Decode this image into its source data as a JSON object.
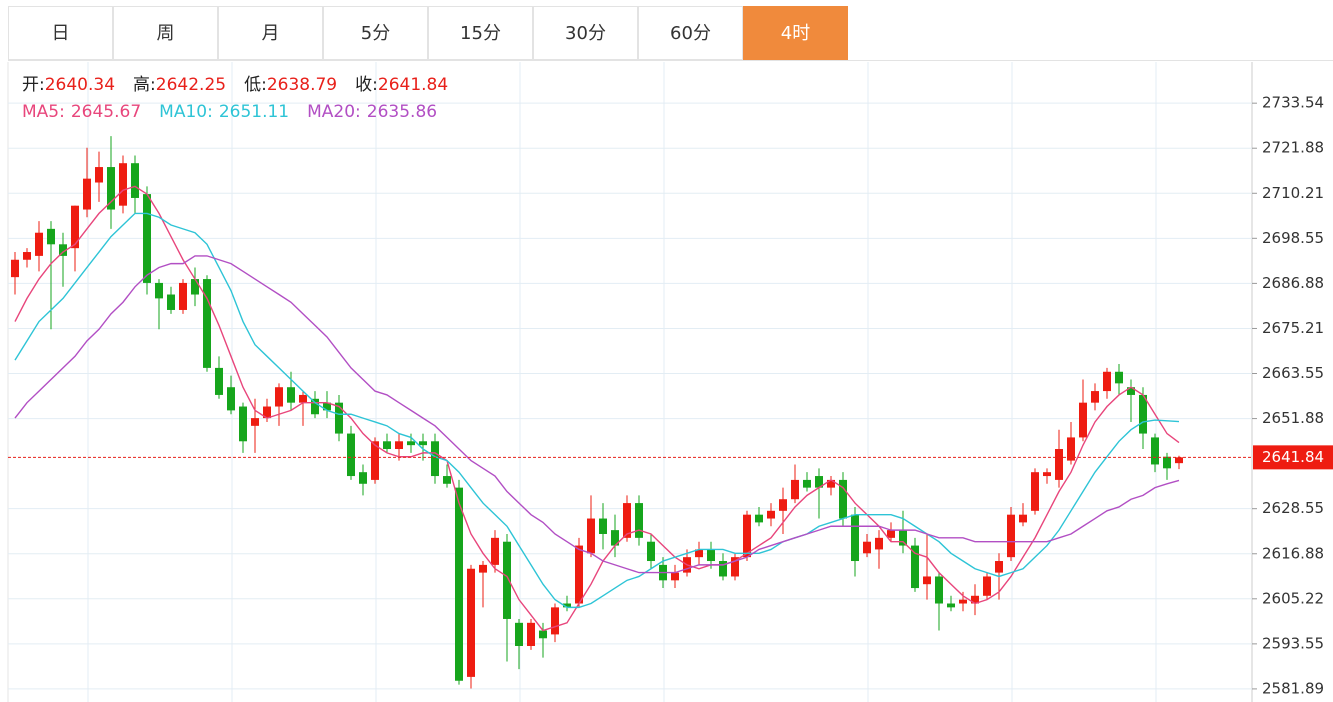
{
  "tabs": [
    "日",
    "周",
    "月",
    "5分",
    "15分",
    "30分",
    "60分",
    "4时"
  ],
  "active_tab": 7,
  "chart_data": {
    "type": "candlestick",
    "summary": [
      {
        "label": "开:",
        "value": 2640.34
      },
      {
        "label": "高:",
        "value": 2642.25
      },
      {
        "label": "低:",
        "value": 2638.79
      },
      {
        "label": "收:",
        "value": 2641.84
      }
    ],
    "up_color": "#ee1c11",
    "down_color": "#16a51c",
    "open": [
      2688.5,
      2693,
      2694,
      2701,
      2697,
      2696,
      2706,
      2713,
      2717,
      2707,
      2718,
      2710,
      2687,
      2684,
      2680,
      2688,
      2688,
      2665,
      2660,
      2655,
      2650,
      2652,
      2655,
      2660,
      2656,
      2657,
      2656,
      2656,
      2648,
      2638,
      2636,
      2646,
      2644,
      2646,
      2646,
      2646,
      2637,
      2634,
      2585,
      2612,
      2614,
      2620,
      2599,
      2593,
      2597,
      2596,
      2604,
      2604,
      2617,
      2626,
      2623,
      2621,
      2630,
      2620,
      2614,
      2610,
      2612,
      2616,
      2618,
      2615,
      2611,
      2616,
      2627,
      2626,
      2628,
      2631,
      2636,
      2637,
      2634,
      2636,
      2627,
      2617,
      2618,
      2621,
      2623,
      2619,
      2609,
      2611,
      2604,
      2604,
      2604,
      2606,
      2612,
      2616,
      2625,
      2628,
      2637,
      2636,
      2641,
      2647,
      2656,
      2659,
      2664,
      2660,
      2658,
      2647,
      2642,
      2640.34
    ],
    "high": [
      2695,
      2696,
      2703,
      2703,
      2700,
      2707,
      2722,
      2721,
      2725,
      2720,
      2720,
      2712,
      2688,
      2686,
      2688,
      2691,
      2689,
      2668,
      2663,
      2656,
      2657,
      2657,
      2661,
      2664,
      2659,
      2659,
      2659,
      2658,
      2650,
      2640,
      2647,
      2648,
      2648,
      2648,
      2648,
      2648,
      2640,
      2636,
      2614,
      2615,
      2623,
      2622,
      2600,
      2600,
      2599,
      2604,
      2606,
      2621,
      2632,
      2630,
      2627,
      2632,
      2632,
      2622,
      2616,
      2614,
      2618,
      2620,
      2620,
      2617,
      2617,
      2628,
      2629,
      2630,
      2634,
      2640,
      2638,
      2639,
      2637,
      2638,
      2629,
      2622,
      2623,
      2625,
      2628,
      2621,
      2622,
      2612,
      2606,
      2607,
      2609,
      2612,
      2617,
      2629,
      2630,
      2639,
      2639,
      2649,
      2651,
      2662,
      2661,
      2665,
      2666,
      2662,
      2660,
      2648,
      2643,
      2642.25
    ],
    "low": [
      2684,
      2691,
      2690,
      2675,
      2686,
      2690,
      2704,
      2708,
      2701,
      2705,
      2705,
      2684,
      2675,
      2679,
      2679,
      2681,
      2664,
      2657,
      2653,
      2643,
      2643,
      2651,
      2650,
      2654,
      2650,
      2652,
      2652,
      2646,
      2636,
      2632,
      2635,
      2643,
      2641,
      2643,
      2641,
      2635,
      2634,
      2583,
      2582,
      2603,
      2612,
      2589,
      2587,
      2592,
      2590,
      2594,
      2602,
      2603,
      2616,
      2618,
      2616,
      2620,
      2619,
      2613,
      2608,
      2608,
      2611,
      2614,
      2613,
      2610,
      2610,
      2615,
      2624,
      2624,
      2622,
      2630,
      2633,
      2626,
      2632,
      2624,
      2611,
      2616,
      2613,
      2620,
      2617,
      2607,
      2605,
      2597,
      2602,
      2602,
      2601,
      2605,
      2605,
      2615,
      2624,
      2627,
      2635,
      2634,
      2640,
      2646,
      2654,
      2657,
      2658,
      2651,
      2644,
      2638,
      2636,
      2638.79
    ],
    "close": [
      2693,
      2695,
      2700,
      2697,
      2694,
      2707,
      2714,
      2717,
      2706,
      2718,
      2709,
      2687,
      2683,
      2680,
      2687,
      2684,
      2665,
      2658,
      2654,
      2646,
      2652,
      2655,
      2660,
      2656,
      2658,
      2653,
      2654,
      2648,
      2637,
      2635,
      2646,
      2644,
      2646,
      2645,
      2645,
      2637,
      2635,
      2584,
      2613,
      2614,
      2621,
      2600,
      2593,
      2599,
      2595,
      2603,
      2603,
      2619,
      2626,
      2622,
      2619,
      2630,
      2621,
      2615,
      2610,
      2612,
      2616,
      2618,
      2615,
      2611,
      2616,
      2627,
      2625,
      2628,
      2631,
      2636,
      2634,
      2634,
      2636,
      2626,
      2615,
      2620,
      2621,
      2623,
      2619,
      2608,
      2611,
      2604,
      2603,
      2605,
      2606,
      2611,
      2615,
      2627,
      2627,
      2638,
      2638,
      2644,
      2647,
      2656,
      2659,
      2664,
      2661,
      2658,
      2648,
      2640,
      2639,
      2641.84
    ],
    "series": [
      {
        "name": "MA5:",
        "color": "#e8467c",
        "last": 2645.67,
        "values": [
          2677,
          2683,
          2688,
          2692,
          2695,
          2697,
          2701,
          2705,
          2708,
          2711,
          2712,
          2710,
          2705,
          2699,
          2693,
          2688,
          2683,
          2676,
          2668,
          2660,
          2654,
          2652,
          2653,
          2654,
          2656,
          2656,
          2656,
          2655,
          2652,
          2648,
          2645,
          2643,
          2642,
          2642,
          2643,
          2643,
          2641,
          2630,
          2622,
          2617,
          2613,
          2611,
          2605,
          2601,
          2597,
          2598,
          2599,
          2604,
          2609,
          2615,
          2619,
          2622,
          2623,
          2622,
          2619,
          2616,
          2614,
          2613,
          2614,
          2614,
          2615,
          2617,
          2619,
          2621,
          2625,
          2629,
          2632,
          2634,
          2636,
          2634,
          2630,
          2627,
          2624,
          2620,
          2620,
          2617,
          2616,
          2612,
          2609,
          2606,
          2604,
          2605,
          2607,
          2611,
          2616,
          2621,
          2627,
          2633,
          2638,
          2645,
          2651,
          2655,
          2658,
          2660,
          2658,
          2653,
          2648,
          2645.67
        ]
      },
      {
        "name": "MA10:",
        "color": "#2ec4d6",
        "last": 2651.11,
        "values": [
          2667,
          2672,
          2677,
          2680,
          2683,
          2687,
          2691,
          2695,
          2699,
          2702,
          2705,
          2705,
          2704,
          2702,
          2701,
          2700,
          2697,
          2691,
          2685,
          2677,
          2671,
          2668,
          2665,
          2662,
          2659,
          2656,
          2654,
          2653,
          2653,
          2652,
          2651,
          2650,
          2648,
          2647,
          2644,
          2642,
          2641,
          2638,
          2634,
          2630,
          2627,
          2624,
          2619,
          2614,
          2609,
          2605,
          2603,
          2603,
          2604,
          2606,
          2608,
          2610,
          2611,
          2613,
          2615,
          2616,
          2617,
          2618,
          2618,
          2618,
          2617,
          2617,
          2617,
          2618,
          2620,
          2621,
          2622,
          2624,
          2625,
          2626,
          2627,
          2627,
          2627,
          2627,
          2626,
          2624,
          2622,
          2620,
          2617,
          2615,
          2613,
          2612,
          2611,
          2612,
          2613,
          2616,
          2619,
          2623,
          2628,
          2633,
          2638,
          2642,
          2646,
          2649,
          2651,
          2651.5,
          2651.3,
          2651.11
        ]
      },
      {
        "name": "MA20:",
        "color": "#b24fc4",
        "last": 2635.86,
        "values": [
          2652,
          2656,
          2659,
          2662,
          2665,
          2668,
          2672,
          2675,
          2679,
          2682,
          2686,
          2689,
          2691,
          2692,
          2692,
          2694,
          2694,
          2693,
          2692,
          2690,
          2688,
          2686,
          2684,
          2682,
          2679,
          2676,
          2673,
          2669,
          2665,
          2662,
          2659,
          2658,
          2656,
          2654,
          2652,
          2650,
          2647,
          2644,
          2641,
          2639,
          2637,
          2633,
          2630,
          2627,
          2625,
          2622,
          2620,
          2618,
          2617,
          2615,
          2614,
          2613,
          2612,
          2612,
          2612,
          2612,
          2613,
          2614,
          2614,
          2614,
          2615,
          2616,
          2618,
          2619,
          2620,
          2621,
          2622,
          2623,
          2624,
          2624,
          2624,
          2624,
          2624,
          2623,
          2623,
          2623,
          2622,
          2621,
          2621,
          2621,
          2620,
          2620,
          2620,
          2620,
          2620,
          2620,
          2620,
          2621,
          2622,
          2624,
          2626,
          2628,
          2629,
          2631,
          2632,
          2634,
          2635,
          2635.86
        ]
      }
    ],
    "last_price": 2641.84,
    "ylim": [
      2578.5,
      2744.2
    ],
    "yticks": [
      2733.54,
      2721.88,
      2710.21,
      2698.55,
      2686.88,
      2675.21,
      2663.55,
      2651.88,
      2628.55,
      2616.88,
      2605.22,
      2593.55,
      2581.89
    ],
    "grid": true
  }
}
